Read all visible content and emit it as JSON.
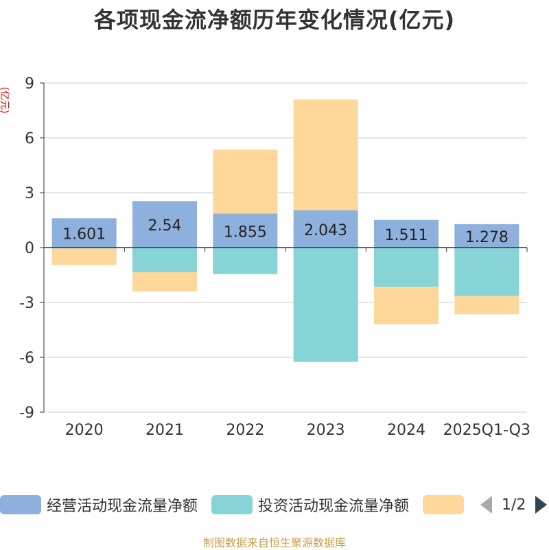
{
  "chart_data": {
    "type": "bar",
    "stacked": true,
    "title": "各项现金流净额历年变化情况(亿元)",
    "ylabel": "(亿元)",
    "ylim": [
      -9,
      9
    ],
    "yticks": [
      -9,
      -6,
      -3,
      0,
      3,
      6,
      9
    ],
    "categories": [
      "2020",
      "2021",
      "2022",
      "2023",
      "2024",
      "2025Q1-Q3"
    ],
    "series": [
      {
        "name": "经营活动现金流量净额",
        "color": "#8eb0dc",
        "values": [
          1.601,
          2.54,
          1.855,
          2.043,
          1.511,
          1.278
        ],
        "labels": [
          "1.601",
          "2.54",
          "1.855",
          "2.043",
          "1.511",
          "1.278"
        ]
      },
      {
        "name": "投资活动现金流量净额",
        "color": "#86d4d6",
        "values": [
          -0.05,
          -1.35,
          -1.45,
          -6.25,
          -2.15,
          -2.65
        ]
      },
      {
        "name": "",
        "color": "#fdd89a",
        "values": [
          -0.9,
          -1.05,
          3.5,
          6.05,
          -2.05,
          -1.0
        ]
      }
    ],
    "grid": true,
    "legend_position": "bottom"
  },
  "legend": {
    "pager": "1/2"
  },
  "source": "制图数据来自恒生聚源数据库"
}
